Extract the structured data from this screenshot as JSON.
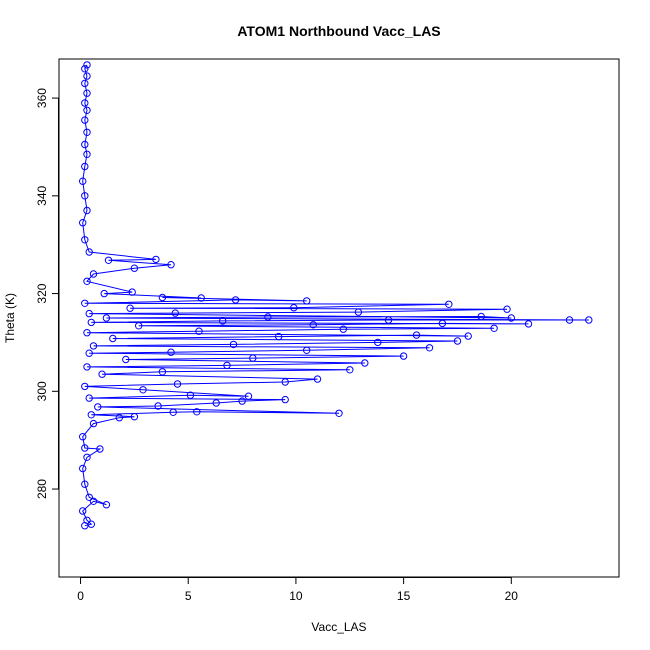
{
  "chart_data": {
    "type": "scatter",
    "title": "ATOM1 Northbound Vacc_LAS",
    "xlabel": "Vacc_LAS",
    "ylabel": "Theta (K)",
    "xlim": [
      -1,
      25
    ],
    "ylim": [
      262,
      368
    ],
    "xticks": [
      0,
      5,
      10,
      15,
      20
    ],
    "yticks": [
      280,
      300,
      320,
      340,
      360
    ],
    "grid": false,
    "legend": "none",
    "mode": "points+lines",
    "series_color": "#0000ff",
    "marker": "open-circle",
    "series": [
      {
        "points": [
          [
            0.2,
            272.5
          ],
          [
            0.5,
            272.8
          ],
          [
            0.3,
            273.6
          ],
          [
            0.1,
            275.5
          ],
          [
            0.6,
            277.5
          ],
          [
            1.2,
            276.8
          ],
          [
            0.4,
            278.3
          ],
          [
            0.2,
            281.0
          ],
          [
            0.1,
            284.2
          ],
          [
            0.3,
            286.5
          ],
          [
            0.9,
            288.2
          ],
          [
            0.2,
            288.4
          ],
          [
            0.1,
            290.7
          ],
          [
            0.6,
            293.4
          ],
          [
            1.8,
            294.6
          ],
          [
            2.5,
            294.8
          ],
          [
            0.5,
            295.2
          ],
          [
            4.3,
            295.7
          ],
          [
            5.4,
            295.8
          ],
          [
            12.0,
            295.5
          ],
          [
            0.8,
            296.8
          ],
          [
            3.6,
            297.0
          ],
          [
            6.3,
            297.6
          ],
          [
            7.5,
            298.0
          ],
          [
            9.5,
            298.3
          ],
          [
            0.4,
            298.6
          ],
          [
            5.1,
            299.2
          ],
          [
            7.8,
            299.0
          ],
          [
            2.9,
            300.3
          ],
          [
            0.2,
            301.0
          ],
          [
            4.5,
            301.5
          ],
          [
            9.5,
            301.9
          ],
          [
            11.0,
            302.5
          ],
          [
            1.0,
            303.5
          ],
          [
            3.8,
            304.0
          ],
          [
            12.5,
            304.4
          ],
          [
            0.3,
            305.0
          ],
          [
            6.8,
            305.3
          ],
          [
            13.2,
            305.8
          ],
          [
            2.1,
            306.5
          ],
          [
            8.0,
            306.8
          ],
          [
            15.0,
            307.2
          ],
          [
            0.4,
            307.8
          ],
          [
            4.2,
            308.0
          ],
          [
            10.5,
            308.4
          ],
          [
            16.2,
            308.9
          ],
          [
            0.6,
            309.3
          ],
          [
            7.1,
            309.6
          ],
          [
            13.8,
            310.0
          ],
          [
            17.5,
            310.3
          ],
          [
            1.5,
            310.8
          ],
          [
            9.2,
            311.2
          ],
          [
            15.6,
            311.5
          ],
          [
            18.0,
            311.3
          ],
          [
            0.3,
            312.0
          ],
          [
            5.5,
            312.3
          ],
          [
            12.2,
            312.7
          ],
          [
            19.2,
            312.9
          ],
          [
            2.7,
            313.4
          ],
          [
            10.8,
            313.6
          ],
          [
            16.8,
            313.9
          ],
          [
            20.8,
            313.8
          ],
          [
            0.5,
            314.1
          ],
          [
            6.6,
            314.4
          ],
          [
            14.3,
            314.6
          ],
          [
            22.7,
            314.6
          ],
          [
            23.6,
            314.6
          ],
          [
            1.2,
            315.0
          ],
          [
            8.7,
            315.2
          ],
          [
            18.6,
            315.3
          ],
          [
            20.0,
            315.0
          ],
          [
            0.4,
            315.9
          ],
          [
            4.4,
            316.0
          ],
          [
            12.9,
            316.2
          ],
          [
            19.8,
            316.8
          ],
          [
            2.3,
            317.0
          ],
          [
            9.9,
            317.1
          ],
          [
            17.1,
            317.8
          ],
          [
            0.2,
            318.0
          ],
          [
            7.2,
            318.7
          ],
          [
            10.5,
            318.5
          ],
          [
            3.8,
            319.2
          ],
          [
            5.6,
            319.1
          ],
          [
            1.1,
            320.0
          ],
          [
            2.4,
            320.3
          ],
          [
            0.3,
            322.5
          ],
          [
            0.6,
            324.0
          ],
          [
            2.5,
            325.2
          ],
          [
            4.2,
            325.9
          ],
          [
            1.3,
            326.8
          ],
          [
            3.5,
            327.0
          ],
          [
            0.4,
            328.5
          ],
          [
            0.2,
            331.0
          ],
          [
            0.1,
            334.5
          ],
          [
            0.3,
            337.0
          ],
          [
            0.2,
            340.0
          ],
          [
            0.1,
            343.0
          ],
          [
            0.2,
            346.0
          ],
          [
            0.3,
            348.5
          ],
          [
            0.2,
            350.5
          ],
          [
            0.3,
            353.0
          ],
          [
            0.2,
            355.5
          ],
          [
            0.3,
            357.5
          ],
          [
            0.2,
            359.0
          ],
          [
            0.3,
            361.0
          ],
          [
            0.2,
            363.0
          ],
          [
            0.3,
            364.5
          ],
          [
            0.2,
            366.0
          ],
          [
            0.3,
            366.8
          ]
        ]
      }
    ]
  }
}
